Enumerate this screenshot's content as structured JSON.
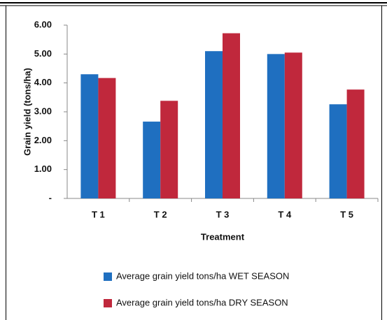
{
  "chart_data": {
    "type": "bar",
    "y_label": "Grain yield  (tons/ha)",
    "x_label": "Treatment",
    "categories": [
      "T 1",
      "T 2",
      "T 3",
      "T 4",
      "T 5"
    ],
    "series": [
      {
        "name": "Average grain yield  tons/ha WET SEASON",
        "color": "#1f6fc0",
        "values": [
          4.3,
          2.66,
          5.1,
          5.0,
          3.26
        ]
      },
      {
        "name": "Average grain yield  tons/ha DRY SEASON",
        "color": "#c0283c",
        "values": [
          4.17,
          3.38,
          5.72,
          5.05,
          3.77
        ]
      }
    ],
    "ylim": [
      0,
      6
    ],
    "yticks": [
      {
        "value": 0,
        "label": "-"
      },
      {
        "value": 1,
        "label": "1.00"
      },
      {
        "value": 2,
        "label": "2.00"
      },
      {
        "value": 3,
        "label": "3.00"
      },
      {
        "value": 4,
        "label": "4.00"
      },
      {
        "value": 5,
        "label": "5.00"
      },
      {
        "value": 6,
        "label": "6.00"
      }
    ],
    "grid": false
  }
}
